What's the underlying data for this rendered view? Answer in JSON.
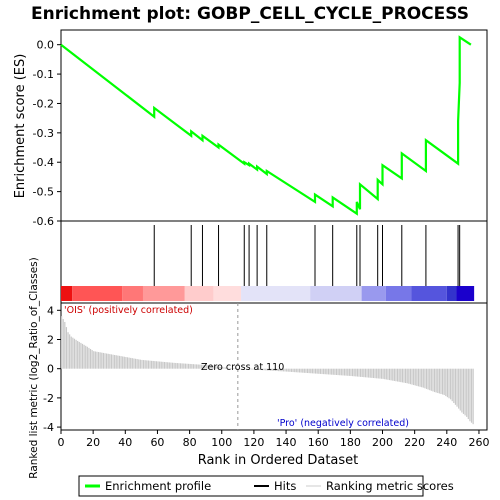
{
  "chart_data": {
    "type": "line",
    "title": "Enrichment plot: GOBP_CELL_CYCLE_PROCESS",
    "xlabel": "Rank in Ordered Dataset",
    "xlim": [
      0,
      265
    ],
    "x_ticks": [
      "0",
      "20",
      "40",
      "60",
      "80",
      "100",
      "120",
      "140",
      "160",
      "180",
      "200",
      "220",
      "240",
      "260"
    ],
    "top_panel": {
      "ylabel": "Enrichment score (ES)",
      "ylim": [
        -0.6,
        0.05
      ],
      "y_ticks": [
        "0.0",
        "-0.1",
        "-0.2",
        "-0.3",
        "-0.4",
        "-0.5",
        "-0.6"
      ],
      "series": [
        {
          "name": "Enrichment profile",
          "color": "#00ff00",
          "x": [
            0,
            58,
            58,
            81,
            81,
            88,
            88,
            98,
            98,
            114,
            114,
            117,
            117,
            122,
            122,
            128,
            128,
            158,
            158,
            169,
            169,
            184,
            184,
            186,
            186,
            197,
            197,
            200,
            200,
            212,
            212,
            227,
            227,
            247,
            247,
            248,
            248,
            255
          ],
          "y": [
            0.0,
            -0.245,
            -0.215,
            -0.31,
            -0.295,
            -0.325,
            -0.31,
            -0.35,
            -0.34,
            -0.405,
            -0.4,
            -0.41,
            -0.405,
            -0.425,
            -0.415,
            -0.44,
            -0.43,
            -0.535,
            -0.51,
            -0.55,
            -0.52,
            -0.575,
            -0.535,
            -0.56,
            -0.475,
            -0.525,
            -0.46,
            -0.475,
            -0.41,
            -0.455,
            -0.37,
            -0.43,
            -0.325,
            -0.405,
            -0.26,
            -0.13,
            0.025,
            0.0
          ]
        }
      ]
    },
    "hits_panel": {
      "hit_positions": [
        58,
        81,
        88,
        98,
        114,
        117,
        122,
        128,
        158,
        169,
        184,
        186,
        197,
        200,
        212,
        227,
        247,
        248
      ],
      "gradient_colors": [
        {
          "from": 0,
          "to": 7,
          "color": "#ee1111"
        },
        {
          "from": 7,
          "to": 38,
          "color": "#ff5555"
        },
        {
          "from": 38,
          "to": 51,
          "color": "#ff7777"
        },
        {
          "from": 51,
          "to": 77,
          "color": "#ff9999"
        },
        {
          "from": 77,
          "to": 95,
          "color": "#ffcccc"
        },
        {
          "from": 95,
          "to": 112,
          "color": "#ffdddd"
        },
        {
          "from": 112,
          "to": 155,
          "color": "#e3e3f8"
        },
        {
          "from": 155,
          "to": 187,
          "color": "#d0d0f5"
        },
        {
          "from": 187,
          "to": 202,
          "color": "#9999ee"
        },
        {
          "from": 202,
          "to": 218,
          "color": "#7777e8"
        },
        {
          "from": 218,
          "to": 240,
          "color": "#5555dd"
        },
        {
          "from": 240,
          "to": 246,
          "color": "#3333cc"
        },
        {
          "from": 246,
          "to": 257,
          "color": "#1a00cc"
        }
      ]
    },
    "bottom_panel": {
      "ylabel": "Ranked list metric (log2_Ratio_of_Classes)",
      "ylim": [
        -4.2,
        4.5
      ],
      "y_ticks": [
        "4",
        "2",
        "0",
        "-2",
        "-4"
      ],
      "zero_cross_label": "Zero cross at 110",
      "zero_cross": 110,
      "positive_label": "'OIS' (positively correlated)",
      "negative_label": "'Pro' (negatively correlated)",
      "metric_profile": {
        "x": [
          0,
          2,
          4,
          6,
          10,
          16,
          20,
          35,
          50,
          70,
          90,
          100,
          110,
          140,
          160,
          180,
          200,
          215,
          225,
          232,
          238,
          242,
          246,
          249,
          252,
          254,
          256
        ],
        "y": [
          3.6,
          3.2,
          2.5,
          2.2,
          1.9,
          1.5,
          1.2,
          0.9,
          0.6,
          0.4,
          0.25,
          0.1,
          0.0,
          -0.2,
          -0.35,
          -0.5,
          -0.7,
          -1.0,
          -1.3,
          -1.6,
          -1.8,
          -2.1,
          -2.6,
          -3.0,
          -3.3,
          -3.6,
          -3.8
        ]
      }
    },
    "legend": {
      "placement": "bottom",
      "items": [
        {
          "label": "Enrichment profile",
          "color": "#00ff00"
        },
        {
          "label": "Hits",
          "color": "#000000"
        },
        {
          "label": "Ranking metric scores",
          "color": "#cccccc"
        }
      ]
    }
  }
}
